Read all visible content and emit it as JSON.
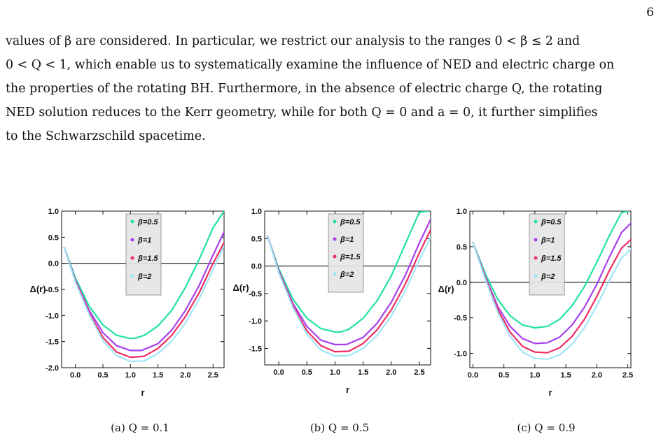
{
  "page": {
    "number": "6"
  },
  "paragraph": {
    "lines": [
      "values of β are considered. In particular, we restrict our analysis to the ranges 0 < β ≤ 2 and",
      "0 < Q < 1, which enable us to systematically examine the influence of NED and electric charge on",
      "the properties of the rotating BH. Furthermore, in the absence of electric charge Q, the rotating",
      "NED solution reduces to the Kerr geometry, while for both Q = 0 and a = 0, it further simplifies",
      "to the Schwarzschild spacetime."
    ]
  },
  "colors": {
    "beta_0_5": "#22e39c",
    "beta_1": "#a83ff0",
    "beta_1_5": "#ee2d62",
    "beta_2": "#9fe6f5"
  },
  "chart_data": [
    {
      "type": "line",
      "caption": "(a) Q = 0.1",
      "xlabel": "r",
      "ylabel": "Δ(r)",
      "xlim": [
        -0.25,
        2.7
      ],
      "ylim": [
        -2.0,
        1.0
      ],
      "xticks": [
        "0.0",
        "0.5",
        "1.0",
        "1.5",
        "2.0",
        "2.5"
      ],
      "yticks": [
        "1.0",
        "0.5",
        "0.0",
        "-0.5",
        "-1.0",
        "-1.5",
        "-2.0"
      ],
      "legend": {
        "position": "top-center",
        "entries": [
          "β=0.5",
          "β=1",
          "β=1.5",
          "β=2"
        ]
      },
      "series": [
        {
          "name": "β=0.5",
          "color": "#22e39c",
          "x": [
            -0.2,
            0.0,
            0.25,
            0.5,
            0.75,
            1.0,
            1.1,
            1.25,
            1.5,
            1.75,
            2.0,
            2.25,
            2.5,
            2.7
          ],
          "y": [
            0.3,
            -0.28,
            -0.82,
            -1.18,
            -1.38,
            -1.44,
            -1.43,
            -1.38,
            -1.2,
            -0.9,
            -0.46,
            0.08,
            0.68,
            1.0
          ]
        },
        {
          "name": "β=1",
          "color": "#a83ff0",
          "x": [
            -0.2,
            0.0,
            0.25,
            0.5,
            0.75,
            1.0,
            1.2,
            1.5,
            1.75,
            2.0,
            2.25,
            2.5,
            2.7
          ],
          "y": [
            0.3,
            -0.32,
            -0.9,
            -1.33,
            -1.58,
            -1.67,
            -1.67,
            -1.54,
            -1.28,
            -0.9,
            -0.42,
            0.16,
            0.6
          ]
        },
        {
          "name": "β=1.5",
          "color": "#ee2d62",
          "x": [
            -0.2,
            0.0,
            0.25,
            0.5,
            0.75,
            1.0,
            1.25,
            1.5,
            1.75,
            2.0,
            2.25,
            2.5,
            2.7
          ],
          "y": [
            0.3,
            -0.34,
            -0.95,
            -1.42,
            -1.7,
            -1.8,
            -1.78,
            -1.63,
            -1.38,
            -1.02,
            -0.56,
            0.0,
            0.4
          ]
        },
        {
          "name": "β=2",
          "color": "#9fe6f5",
          "x": [
            -0.2,
            0.0,
            0.25,
            0.5,
            0.75,
            1.0,
            1.25,
            1.5,
            1.75,
            2.0,
            2.25,
            2.5,
            2.7
          ],
          "y": [
            0.3,
            -0.36,
            -0.98,
            -1.48,
            -1.77,
            -1.88,
            -1.87,
            -1.73,
            -1.49,
            -1.14,
            -0.68,
            -0.12,
            0.34
          ]
        }
      ]
    },
    {
      "type": "line",
      "caption": "(b) Q = 0.5",
      "xlabel": "r",
      "ylabel": "Δ(r)",
      "xlim": [
        -0.25,
        2.7
      ],
      "ylim": [
        -1.8,
        1.0
      ],
      "xticks": [
        "0.0",
        "0.5",
        "1.0",
        "1.5",
        "2.0",
        "2.5"
      ],
      "yticks": [
        "1.0",
        "0.5",
        "0.0",
        "-0.5",
        "-1.0",
        "-1.5"
      ],
      "legend": {
        "position": "top-center",
        "entries": [
          "β=0.5",
          "β=1",
          "β=1.5",
          "β=2"
        ]
      },
      "series": [
        {
          "name": "β=0.5",
          "color": "#22e39c",
          "x": [
            -0.2,
            0.0,
            0.25,
            0.5,
            0.75,
            1.0,
            1.1,
            1.25,
            1.5,
            1.75,
            2.0,
            2.25,
            2.5,
            2.65
          ],
          "y": [
            0.55,
            -0.05,
            -0.6,
            -0.95,
            -1.14,
            -1.2,
            -1.2,
            -1.15,
            -0.95,
            -0.63,
            -0.18,
            0.4,
            0.98,
            1.0
          ]
        },
        {
          "name": "β=1",
          "color": "#a83ff0",
          "x": [
            -0.2,
            0.0,
            0.25,
            0.5,
            0.75,
            1.0,
            1.2,
            1.5,
            1.75,
            2.0,
            2.25,
            2.5,
            2.7
          ],
          "y": [
            0.55,
            -0.08,
            -0.68,
            -1.1,
            -1.35,
            -1.43,
            -1.43,
            -1.3,
            -1.04,
            -0.66,
            -0.17,
            0.42,
            0.85
          ]
        },
        {
          "name": "β=1.5",
          "color": "#ee2d62",
          "x": [
            -0.2,
            0.0,
            0.25,
            0.5,
            0.75,
            1.0,
            1.25,
            1.5,
            1.75,
            2.0,
            2.25,
            2.5,
            2.7
          ],
          "y": [
            0.55,
            -0.1,
            -0.72,
            -1.18,
            -1.45,
            -1.56,
            -1.55,
            -1.41,
            -1.16,
            -0.8,
            -0.33,
            0.24,
            0.66
          ]
        },
        {
          "name": "β=2",
          "color": "#9fe6f5",
          "x": [
            -0.2,
            0.0,
            0.25,
            0.5,
            0.75,
            1.0,
            1.25,
            1.5,
            1.75,
            2.0,
            2.25,
            2.5,
            2.7
          ],
          "y": [
            0.55,
            -0.12,
            -0.75,
            -1.24,
            -1.53,
            -1.64,
            -1.63,
            -1.5,
            -1.26,
            -0.91,
            -0.45,
            0.11,
            0.52
          ]
        }
      ]
    },
    {
      "type": "line",
      "caption": "(c) Q = 0.9",
      "xlabel": "r",
      "ylabel": "Δ(r)",
      "xlim": [
        -0.05,
        2.55
      ],
      "ylim": [
        -1.2,
        1.0
      ],
      "xticks": [
        "0.0",
        "0.5",
        "1.0",
        "1.5",
        "2.0",
        "2.5"
      ],
      "yticks": [
        "1.0",
        "0.5",
        "0.0",
        "-0.5",
        "-1.0"
      ],
      "legend": {
        "position": "top-center",
        "entries": [
          "β=0.5",
          "β=1",
          "β=1.5",
          "β=2"
        ]
      },
      "series": [
        {
          "name": "β=0.5",
          "color": "#22e39c",
          "x": [
            0.0,
            0.2,
            0.4,
            0.6,
            0.8,
            1.0,
            1.2,
            1.4,
            1.6,
            1.8,
            2.0,
            2.2,
            2.4,
            2.5
          ],
          "y": [
            0.56,
            0.12,
            -0.24,
            -0.47,
            -0.6,
            -0.64,
            -0.62,
            -0.52,
            -0.33,
            -0.06,
            0.28,
            0.65,
            0.98,
            1.0
          ]
        },
        {
          "name": "β=1",
          "color": "#a83ff0",
          "x": [
            0.0,
            0.2,
            0.4,
            0.6,
            0.8,
            1.0,
            1.2,
            1.4,
            1.6,
            1.8,
            2.0,
            2.2,
            2.4,
            2.55
          ],
          "y": [
            0.56,
            0.08,
            -0.34,
            -0.62,
            -0.79,
            -0.86,
            -0.85,
            -0.77,
            -0.6,
            -0.35,
            -0.03,
            0.35,
            0.7,
            0.83
          ]
        },
        {
          "name": "β=1.5",
          "color": "#ee2d62",
          "x": [
            0.0,
            0.2,
            0.4,
            0.6,
            0.8,
            1.0,
            1.2,
            1.4,
            1.6,
            1.8,
            2.0,
            2.2,
            2.4,
            2.55
          ],
          "y": [
            0.56,
            0.06,
            -0.38,
            -0.7,
            -0.9,
            -0.98,
            -0.99,
            -0.92,
            -0.76,
            -0.52,
            -0.2,
            0.16,
            0.48,
            0.6
          ]
        },
        {
          "name": "β=2",
          "color": "#9fe6f5",
          "x": [
            0.0,
            0.2,
            0.4,
            0.6,
            0.8,
            1.0,
            1.2,
            1.4,
            1.6,
            1.8,
            2.0,
            2.2,
            2.4,
            2.55
          ],
          "y": [
            0.56,
            0.04,
            -0.42,
            -0.76,
            -0.98,
            -1.07,
            -1.08,
            -1.02,
            -0.87,
            -0.64,
            -0.33,
            0.02,
            0.34,
            0.47
          ]
        }
      ]
    }
  ]
}
